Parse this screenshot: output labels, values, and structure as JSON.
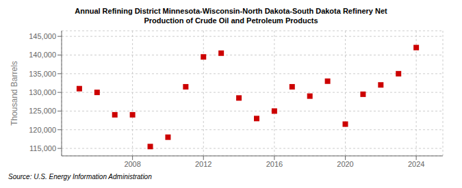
{
  "chart_data": {
    "type": "scatter",
    "title": "Annual Refining District Minnesota-Wisconsin-North Dakota-South Dakota Refinery Net\nProduction of Crude Oil and Petroleum Products",
    "ylabel": "Thousand Barrels",
    "annotations": [
      "Source: U.S. Energy Information Administration"
    ],
    "x": [
      2005,
      2006,
      2007,
      2008,
      2009,
      2010,
      2011,
      2012,
      2013,
      2014,
      2015,
      2016,
      2017,
      2018,
      2019,
      2020,
      2021,
      2022,
      2023,
      2024
    ],
    "values": [
      131000,
      130000,
      124000,
      124000,
      115500,
      118000,
      131500,
      139500,
      140500,
      128500,
      123000,
      125000,
      131500,
      129000,
      133000,
      121500,
      129500,
      132000,
      135000,
      142000
    ],
    "color": "#cc0000",
    "marker": "square",
    "xlim": [
      2004.0,
      2025.5
    ],
    "xticks": [
      2008,
      2012,
      2016,
      2020,
      2024
    ],
    "ylim": [
      113000,
      146500
    ],
    "yticks": [
      {
        "value": 115000,
        "label": "115,000"
      },
      {
        "value": 120000,
        "label": "120,000"
      },
      {
        "value": 125000,
        "label": "125,000"
      },
      {
        "value": 130000,
        "label": "130,000"
      },
      {
        "value": 135000,
        "label": "135,000"
      },
      {
        "value": 140000,
        "label": "140,000"
      },
      {
        "value": 145000,
        "label": "145,000"
      }
    ],
    "grid": true
  }
}
